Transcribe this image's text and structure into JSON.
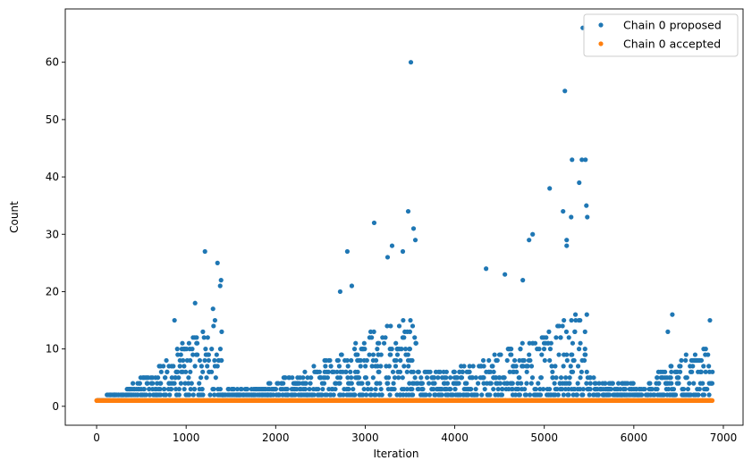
{
  "chart_data": {
    "type": "scatter",
    "title": "",
    "xlabel": "Iteration",
    "ylabel": "Count",
    "xlim": [
      -350,
      7220
    ],
    "ylim": [
      -3.3,
      69.3
    ],
    "xticks": [
      0,
      1000,
      2000,
      3000,
      4000,
      5000,
      6000,
      7000
    ],
    "yticks": [
      0,
      10,
      20,
      30,
      40,
      50,
      60
    ],
    "grid": false,
    "legend_position": "top-right",
    "colors": {
      "proposed": "#1f77b4",
      "accepted": "#ff7f0e"
    },
    "series": [
      {
        "name": "Chain 0 proposed",
        "color": "#1f77b4",
        "segments": [
          {
            "x_start": 0,
            "x_end": 1400,
            "envelope_x": [
              0,
              300,
              600,
              900,
              1100,
              1300,
              1400
            ],
            "envelope_y": [
              1,
              3,
              6,
              10,
              13,
              16,
              14
            ]
          },
          {
            "x_start": 1400,
            "x_end": 3570,
            "envelope_x": [
              1400,
              1700,
              2000,
              2400,
              2800,
              3200,
              3570
            ],
            "envelope_y": [
              3,
              3,
              4,
              7,
              10,
              14,
              16
            ]
          },
          {
            "x_start": 3570,
            "x_end": 5480,
            "envelope_x": [
              3570,
              3900,
              4300,
              4700,
              5100,
              5480
            ],
            "envelope_y": [
              6,
              6,
              8,
              11,
              14,
              18
            ]
          },
          {
            "x_start": 5480,
            "x_end": 6880,
            "envelope_x": [
              5480,
              5800,
              6100,
              6500,
              6880
            ],
            "envelope_y": [
              5,
              4,
              4,
              8,
              11
            ]
          }
        ],
        "outliers": [
          {
            "x": 870,
            "y": 15
          },
          {
            "x": 1100,
            "y": 18
          },
          {
            "x": 1210,
            "y": 27
          },
          {
            "x": 1300,
            "y": 17
          },
          {
            "x": 1350,
            "y": 25
          },
          {
            "x": 1380,
            "y": 21
          },
          {
            "x": 1390,
            "y": 22
          },
          {
            "x": 2720,
            "y": 20
          },
          {
            "x": 2800,
            "y": 27
          },
          {
            "x": 2850,
            "y": 21
          },
          {
            "x": 3100,
            "y": 32
          },
          {
            "x": 3250,
            "y": 26
          },
          {
            "x": 3300,
            "y": 28
          },
          {
            "x": 3420,
            "y": 27
          },
          {
            "x": 3480,
            "y": 34
          },
          {
            "x": 3510,
            "y": 60
          },
          {
            "x": 3540,
            "y": 31
          },
          {
            "x": 3560,
            "y": 29
          },
          {
            "x": 4350,
            "y": 24
          },
          {
            "x": 4560,
            "y": 23
          },
          {
            "x": 4760,
            "y": 22
          },
          {
            "x": 4830,
            "y": 29
          },
          {
            "x": 4870,
            "y": 30
          },
          {
            "x": 5060,
            "y": 38
          },
          {
            "x": 5210,
            "y": 34
          },
          {
            "x": 5230,
            "y": 55
          },
          {
            "x": 5250,
            "y": 29
          },
          {
            "x": 5300,
            "y": 33
          },
          {
            "x": 5310,
            "y": 43
          },
          {
            "x": 5390,
            "y": 39
          },
          {
            "x": 5420,
            "y": 43
          },
          {
            "x": 5430,
            "y": 66
          },
          {
            "x": 5460,
            "y": 43
          },
          {
            "x": 5470,
            "y": 35
          },
          {
            "x": 5480,
            "y": 33
          },
          {
            "x": 5250,
            "y": 28
          },
          {
            "x": 6430,
            "y": 16
          },
          {
            "x": 6380,
            "y": 13
          },
          {
            "x": 6850,
            "y": 15
          }
        ]
      },
      {
        "name": "Chain 0 accepted",
        "color": "#ff7f0e",
        "x_start": 0,
        "x_end": 6880,
        "value": 1
      }
    ]
  }
}
